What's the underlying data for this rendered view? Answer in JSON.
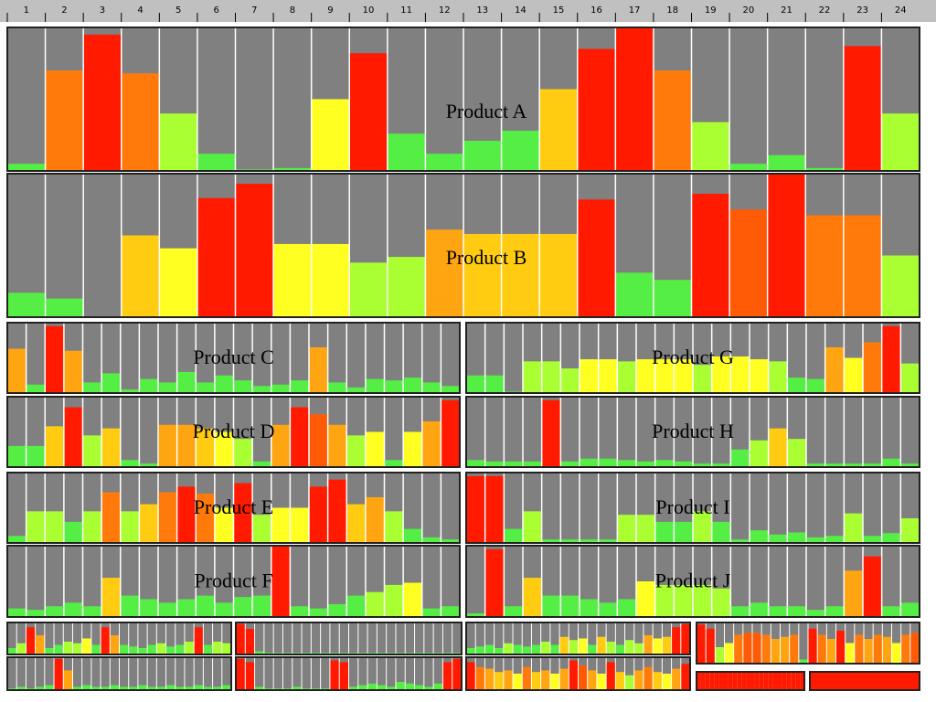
{
  "columns": [
    1,
    2,
    3,
    4,
    5,
    6,
    7,
    8,
    9,
    10,
    11,
    12,
    13,
    14,
    15,
    16,
    17,
    18,
    19,
    20,
    21,
    22,
    23,
    24
  ],
  "color_scale": [
    [
      0,
      "#55ee44"
    ],
    [
      33,
      "#aaff33"
    ],
    [
      46,
      "#ffff22"
    ],
    [
      54,
      "#ffcc11"
    ],
    [
      59,
      "#ffa511"
    ],
    [
      66,
      "#ff7a0a"
    ],
    [
      73,
      "#ff5a05"
    ],
    [
      80,
      "#ff1a00"
    ]
  ],
  "chart_data": [
    {
      "type": "bar",
      "title": "Product A",
      "ylim": [
        0,
        100
      ],
      "values": [
        5,
        70,
        95,
        68,
        40,
        12,
        1,
        2,
        50,
        82,
        26,
        12,
        21,
        28,
        57,
        85,
        100,
        70,
        34,
        5,
        11,
        2,
        87,
        40
      ]
    },
    {
      "type": "bar",
      "title": "Product B",
      "ylim": [
        0,
        100
      ],
      "values": [
        17,
        13,
        0,
        57,
        48,
        83,
        93,
        51,
        51,
        38,
        42,
        61,
        58,
        58,
        58,
        82,
        31,
        26,
        86,
        75,
        100,
        71,
        71,
        43
      ]
    },
    {
      "type": "bar",
      "title": "Product C",
      "ylim": [
        0,
        100
      ],
      "values": [
        63,
        12,
        95,
        60,
        15,
        28,
        5,
        20,
        15,
        30,
        15,
        25,
        18,
        10,
        12,
        18,
        65,
        15,
        8,
        20,
        18,
        22,
        15,
        10
      ]
    },
    {
      "type": "bar",
      "title": "Product D",
      "ylim": [
        0,
        100
      ],
      "values": [
        30,
        30,
        58,
        85,
        45,
        55,
        10,
        5,
        60,
        60,
        55,
        50,
        40,
        8,
        60,
        85,
        75,
        60,
        45,
        50,
        10,
        50,
        65,
        95
      ]
    },
    {
      "type": "bar",
      "title": "Product E",
      "ylim": [
        0,
        100
      ],
      "values": [
        10,
        45,
        45,
        30,
        45,
        72,
        45,
        55,
        72,
        80,
        70,
        50,
        85,
        40,
        50,
        50,
        80,
        90,
        55,
        65,
        45,
        20,
        8,
        5
      ]
    },
    {
      "type": "bar",
      "title": "Product F",
      "ylim": [
        0,
        100
      ],
      "values": [
        12,
        10,
        15,
        20,
        15,
        55,
        30,
        25,
        20,
        25,
        30,
        20,
        28,
        30,
        100,
        15,
        12,
        18,
        30,
        35,
        45,
        48,
        12,
        15
      ]
    },
    {
      "type": "bar",
      "title": "Product G",
      "ylim": [
        0,
        100
      ],
      "values": [
        25,
        25,
        2,
        45,
        45,
        35,
        48,
        48,
        45,
        48,
        48,
        48,
        40,
        52,
        52,
        48,
        45,
        22,
        20,
        65,
        50,
        72,
        95,
        42
      ]
    },
    {
      "type": "bar",
      "title": "Product H",
      "ylim": [
        0,
        100
      ],
      "values": [
        10,
        8,
        8,
        8,
        95,
        8,
        12,
        12,
        10,
        8,
        10,
        8,
        5,
        5,
        25,
        38,
        55,
        40,
        5,
        5,
        5,
        5,
        12,
        5
      ]
    },
    {
      "type": "bar",
      "title": "Product I",
      "ylim": [
        0,
        100
      ],
      "values": [
        95,
        95,
        20,
        45,
        5,
        5,
        5,
        5,
        40,
        40,
        30,
        30,
        45,
        30,
        5,
        18,
        12,
        15,
        8,
        10,
        42,
        10,
        14,
        35
      ]
    },
    {
      "type": "bar",
      "title": "Product J",
      "ylim": [
        0,
        100
      ],
      "values": [
        5,
        95,
        15,
        55,
        30,
        30,
        25,
        20,
        25,
        50,
        45,
        45,
        45,
        40,
        15,
        20,
        15,
        15,
        10,
        15,
        65,
        85,
        15,
        20
      ]
    },
    {
      "type": "bar",
      "ylim": [
        0,
        100
      ],
      "values": [
        20,
        35,
        85,
        60,
        20,
        30,
        40,
        35,
        50,
        30,
        85,
        60,
        30,
        25,
        20,
        30,
        35,
        25,
        30,
        40,
        85,
        30,
        40,
        35
      ]
    },
    {
      "type": "bar",
      "ylim": [
        0,
        100
      ],
      "values": [
        95,
        80,
        10,
        5,
        5,
        5,
        5,
        5,
        5,
        5,
        5,
        5,
        5,
        5,
        5,
        5,
        5,
        5,
        5,
        5,
        5,
        5,
        5,
        5
      ]
    },
    {
      "type": "bar",
      "ylim": [
        0,
        100
      ],
      "values": [
        20,
        25,
        30,
        20,
        35,
        30,
        25,
        30,
        40,
        30,
        55,
        45,
        50,
        30,
        55,
        40,
        30,
        45,
        35,
        60,
        50,
        55,
        85,
        95
      ]
    },
    {
      "type": "bar",
      "ylim": [
        0,
        100
      ],
      "values": [
        95,
        85,
        40,
        50,
        70,
        75,
        75,
        70,
        60,
        65,
        70,
        10,
        85,
        70,
        60,
        80,
        50,
        70,
        60,
        70,
        65,
        50,
        70,
        75
      ]
    },
    {
      "type": "bar",
      "ylim": [
        0,
        100
      ],
      "values": [
        5,
        10,
        5,
        10,
        15,
        95,
        60,
        10,
        15,
        10,
        10,
        15,
        10,
        10,
        15,
        10,
        10,
        15,
        10,
        10,
        15,
        10,
        10,
        15
      ]
    },
    {
      "type": "bar",
      "ylim": [
        0,
        100
      ],
      "values": [
        95,
        85,
        10,
        5,
        5,
        5,
        10,
        5,
        5,
        5,
        90,
        85,
        10,
        15,
        20,
        15,
        10,
        25,
        20,
        15,
        10,
        20,
        85,
        95
      ]
    },
    {
      "type": "bar",
      "ylim": [
        0,
        100
      ],
      "values": [
        85,
        70,
        65,
        55,
        60,
        50,
        70,
        55,
        60,
        50,
        65,
        90,
        75,
        60,
        50,
        85,
        55,
        45,
        60,
        70,
        55,
        50,
        65,
        80
      ]
    },
    {
      "type": "bar",
      "ylim": [
        0,
        100
      ],
      "values": [
        100,
        100,
        100,
        100,
        100,
        100,
        100,
        100,
        100,
        100,
        100,
        100,
        100,
        100,
        100,
        100,
        100,
        100,
        100,
        100,
        100,
        100,
        100,
        100
      ]
    },
    {
      "type": "bar",
      "ylim": [
        0,
        100
      ],
      "values": [
        100,
        100,
        100,
        100,
        100,
        100,
        100,
        100,
        100,
        100,
        100,
        100,
        100,
        100,
        100,
        100,
        100,
        100,
        100,
        100,
        100,
        100,
        100,
        100
      ]
    }
  ]
}
